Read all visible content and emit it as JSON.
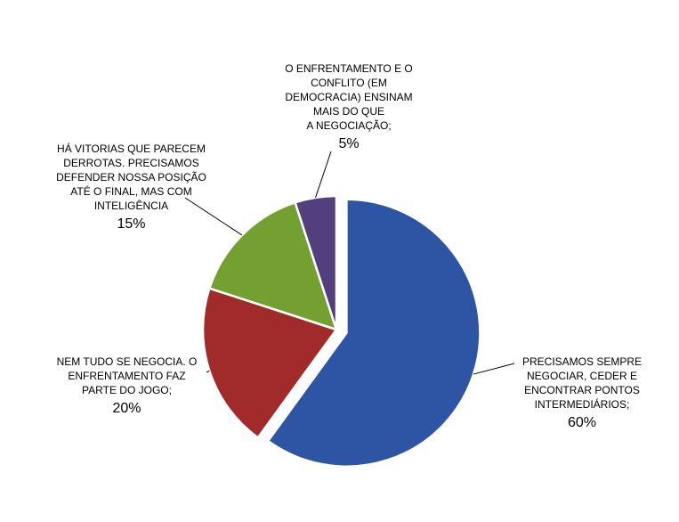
{
  "chart_data": {
    "type": "pie",
    "title": "",
    "slices": [
      {
        "label": "PRECISAMOS SEMPRE NEGOCIAR, CEDER  E ENCONTRAR PONTOS INTERMEDIÁRIOS;",
        "value": 60,
        "value_label": "60%",
        "color": "#2E54A4",
        "exploded": true
      },
      {
        "label": "NEM TUDO SE NEGOCIA. O ENFRENTAMENTO FAZ PARTE DO JOGO;",
        "value": 20,
        "value_label": "20%",
        "color": "#A12A2A",
        "exploded": false
      },
      {
        "label": "HÁ VITORIAS QUE PARECEM DERROTAS. PRECISAMOS DEFENDER NOSSA POSIÇÃO ATÉ O FINAL, MAS COM INTELIGÊNCIA",
        "value": 15,
        "value_label": "15%",
        "color": "#74A032",
        "exploded": false
      },
      {
        "label": "O ENFRENTAMENTO E O CONFLITO (EM DEMOCRACIA) ENSINAM MAIS DO QUE A NEGOCIAÇÃO;",
        "value": 5,
        "value_label": "5%",
        "color": "#533E7E",
        "exploded": false
      }
    ]
  },
  "labels": {
    "s0_lines": [
      "PRECISAMOS SEMPRE",
      "NEGOCIAR, CEDER  E",
      "ENCONTRAR PONTOS",
      "INTERMEDIÁRIOS;"
    ],
    "s1_lines": [
      "NEM TUDO SE NEGOCIA. O",
      "ENFRENTAMENTO FAZ",
      "PARTE DO JOGO;"
    ],
    "s2_lines": [
      "HÁ VITORIAS QUE PARECEM",
      "DERROTAS. PRECISAMOS",
      "DEFENDER NOSSA POSIÇÃO",
      "ATÉ O FINAL, MAS COM",
      "INTELIGÊNCIA"
    ],
    "s3_lines": [
      "O ENFRENTAMENTO E O",
      "CONFLITO (EM",
      "DEMOCRACIA) ENSINAM",
      "MAIS DO QUE",
      "A NEGOCIAÇÃO;"
    ]
  }
}
